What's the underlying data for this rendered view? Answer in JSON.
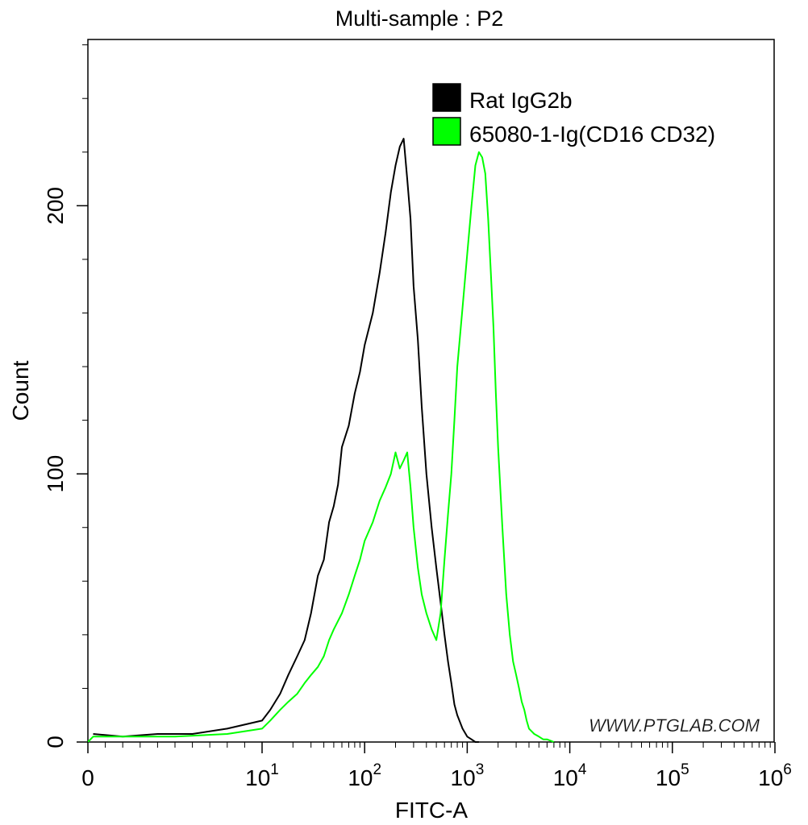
{
  "chart_data": {
    "type": "line",
    "title": "Multi-sample : P2",
    "xlabel": "FITC-A",
    "ylabel": "Count",
    "x_scale": "biexponential (linear near 0, log above 10)",
    "xlim": [
      0,
      1000000
    ],
    "ylim": [
      0,
      262
    ],
    "grid": false,
    "legend_position": "top-right",
    "x_ticks": [
      {
        "value": 0,
        "base": "0",
        "exp": ""
      },
      {
        "value": 10,
        "base": "10",
        "exp": "1"
      },
      {
        "value": 100,
        "base": "10",
        "exp": "2"
      },
      {
        "value": 1000,
        "base": "10",
        "exp": "3"
      },
      {
        "value": 10000,
        "base": "10",
        "exp": "4"
      },
      {
        "value": 100000,
        "base": "10",
        "exp": "5"
      },
      {
        "value": 1000000,
        "base": "10",
        "exp": "6"
      }
    ],
    "y_ticks": [
      0,
      100,
      200
    ],
    "watermark": "WWW.PTGLAB.COM",
    "series": [
      {
        "name": "Rat IgG2b",
        "color": "#000000",
        "x": [
          0.3,
          2,
          4,
          6,
          8,
          10,
          12,
          15,
          18,
          22,
          26,
          30,
          35,
          40,
          45,
          50,
          55,
          60,
          70,
          80,
          90,
          100,
          120,
          140,
          160,
          180,
          200,
          220,
          240,
          260,
          280,
          300,
          330,
          360,
          400,
          450,
          500,
          550,
          600,
          650,
          700,
          750,
          800,
          900,
          1000,
          1100,
          1200,
          1300
        ],
        "y": [
          3,
          2,
          3,
          3,
          5,
          8,
          12,
          18,
          25,
          32,
          38,
          48,
          62,
          68,
          82,
          88,
          96,
          110,
          118,
          130,
          138,
          148,
          160,
          175,
          190,
          205,
          215,
          222,
          225,
          210,
          195,
          170,
          150,
          125,
          100,
          80,
          65,
          52,
          40,
          30,
          22,
          14,
          10,
          5,
          2,
          1,
          0,
          0
        ]
      },
      {
        "name": "65080-1-Ig(CD16 CD32)",
        "color": "#00ff00",
        "x": [
          0,
          0.3,
          2,
          5,
          8,
          10,
          12,
          15,
          18,
          22,
          26,
          30,
          35,
          40,
          45,
          50,
          60,
          70,
          80,
          90,
          100,
          120,
          140,
          160,
          180,
          200,
          220,
          240,
          260,
          280,
          300,
          330,
          360,
          400,
          450,
          500,
          550,
          600,
          650,
          700,
          750,
          800,
          900,
          1000,
          1100,
          1200,
          1300,
          1400,
          1500,
          1600,
          1700,
          1800,
          1900,
          2000,
          2200,
          2400,
          2600,
          2800,
          3000,
          3200,
          3400,
          3600,
          3800,
          4000,
          4500,
          5000,
          5500,
          6000,
          7000
        ],
        "y": [
          0,
          2,
          2,
          2,
          3,
          5,
          8,
          12,
          15,
          18,
          22,
          25,
          28,
          32,
          38,
          42,
          48,
          55,
          62,
          68,
          75,
          82,
          90,
          95,
          100,
          108,
          102,
          105,
          108,
          95,
          80,
          65,
          55,
          48,
          42,
          38,
          48,
          68,
          85,
          100,
          120,
          140,
          162,
          182,
          200,
          215,
          220,
          218,
          212,
          195,
          175,
          155,
          130,
          110,
          80,
          55,
          40,
          30,
          25,
          20,
          15,
          12,
          8,
          5,
          3,
          2,
          1,
          1,
          0
        ]
      }
    ]
  }
}
